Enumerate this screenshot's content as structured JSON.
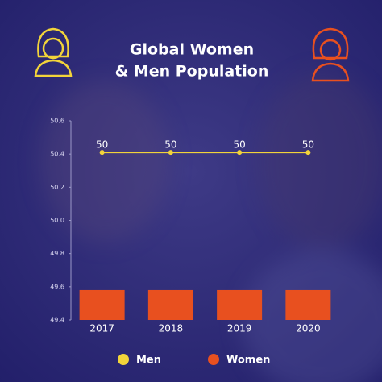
{
  "chart_data": {
    "type": "combo",
    "title": [
      "Global Women",
      "& Men Population"
    ],
    "categories": [
      "2017",
      "2018",
      "2019",
      "2020"
    ],
    "series": [
      {
        "name": "Men",
        "type": "line",
        "color": "#f2d43a",
        "values": [
          50.41,
          50.41,
          50.41,
          50.41
        ],
        "value_labels": [
          "50",
          "50",
          "50",
          "50"
        ]
      },
      {
        "name": "Women",
        "type": "bar",
        "color": "#e8501f",
        "values": [
          49.58,
          49.58,
          49.58,
          49.58
        ]
      }
    ],
    "ylim": [
      49.4,
      50.6
    ],
    "yticks": [
      49.4,
      49.6,
      49.8,
      {
        "value": 50,
        "label": "50.0"
      },
      50.2,
      50.4,
      50.6
    ],
    "grid": false,
    "legend": "bottom"
  }
}
